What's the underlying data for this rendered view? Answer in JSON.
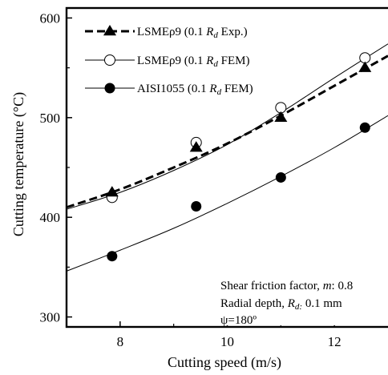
{
  "chart_data": {
    "type": "scatter",
    "title": "",
    "xlabel": "Cutting speed (m/s)",
    "ylabel": "Cutting temperature (°C)",
    "xlim": [
      7,
      13
    ],
    "ylim": [
      290,
      610
    ],
    "xticks": [
      "8",
      "10",
      "12"
    ],
    "yticks": [
      "300",
      "400",
      "500",
      "600"
    ],
    "grid": false,
    "legend_position": "top-left",
    "series": [
      {
        "name_parts": [
          "LSMEρ9  (0.1 ",
          "R",
          "d",
          " Exp.)"
        ],
        "marker": "triangle",
        "line": "dashed",
        "x": [
          7.85,
          9.42,
          11.0,
          12.57
        ],
        "y": [
          425,
          470,
          500,
          550
        ],
        "fit": [
          [
            7.0,
            410
          ],
          [
            8.0,
            428
          ],
          [
            9.0,
            450
          ],
          [
            10.0,
            474
          ],
          [
            11.0,
            502
          ],
          [
            12.0,
            532
          ],
          [
            13.0,
            562
          ]
        ]
      },
      {
        "name_parts": [
          "LSMEρ9  (0.1 ",
          "R",
          "d",
          " FEM)"
        ],
        "marker": "open-circle",
        "line": "solid-thin",
        "x": [
          7.85,
          9.42,
          11.0,
          12.57
        ],
        "y": [
          420,
          475,
          510,
          560
        ],
        "fit": [
          [
            7.0,
            408
          ],
          [
            8.0,
            425
          ],
          [
            9.0,
            447
          ],
          [
            10.0,
            473
          ],
          [
            11.0,
            505
          ],
          [
            12.0,
            540
          ],
          [
            13.0,
            574
          ]
        ]
      },
      {
        "name_parts": [
          "AISI1055 (0.1 ",
          "R",
          "d",
          " FEM)"
        ],
        "marker": "filled-circle",
        "line": "solid-thin",
        "x": [
          7.85,
          9.42,
          11.0,
          12.57
        ],
        "y": [
          361,
          411,
          440,
          490
        ],
        "fit": [
          [
            7.0,
            346
          ],
          [
            8.0,
            367
          ],
          [
            9.0,
            389
          ],
          [
            10.0,
            414
          ],
          [
            11.0,
            441
          ],
          [
            12.0,
            470
          ],
          [
            13.0,
            502
          ]
        ]
      }
    ],
    "annotations": [
      {
        "parts": [
          "Shear friction factor, ",
          "m",
          ": 0.8"
        ]
      },
      {
        "parts": [
          "Radial depth, ",
          "R",
          "d:",
          " 0.1 mm"
        ]
      },
      {
        "parts": [
          "ψ=180º"
        ]
      }
    ]
  }
}
